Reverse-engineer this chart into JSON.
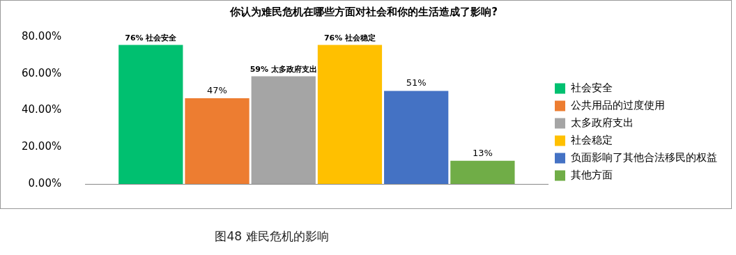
{
  "chart_data": {
    "type": "bar",
    "title": "你认为难民危机在哪些方面对社会和你的生活造成了影响?",
    "categories": [
      null
    ],
    "series": [
      {
        "name": "社会安全",
        "color": "#00c070",
        "values": [
          76
        ],
        "value_labels": [
          "76% 社会安全"
        ]
      },
      {
        "name": "公共用品的过度使用",
        "color": "#ed7d31",
        "values": [
          47
        ],
        "value_labels": [
          "47%"
        ]
      },
      {
        "name": "太多政府支出",
        "color": "#a5a5a5",
        "values": [
          59
        ],
        "value_labels": [
          "59% 太多政府支出"
        ]
      },
      {
        "name": "社会稳定",
        "color": "#ffc000",
        "values": [
          76
        ],
        "value_labels": [
          "76% 社会稳定"
        ]
      },
      {
        "name": "负面影响了其他合法移民的权益",
        "color": "#4472c4",
        "values": [
          51
        ],
        "value_labels": [
          "51%"
        ]
      },
      {
        "name": "其他方面",
        "color": "#70ad47",
        "values": [
          13
        ],
        "value_labels": [
          "13%"
        ]
      }
    ],
    "ylim": [
      0,
      80
    ],
    "yticks": [
      {
        "value": 0,
        "label": "0.00%"
      },
      {
        "value": 20,
        "label": "20.00%"
      },
      {
        "value": 40,
        "label": "40.00%"
      },
      {
        "value": 60,
        "label": "60.00%"
      },
      {
        "value": 80,
        "label": "80.00%"
      }
    ],
    "legend": "right",
    "annotations": [
      "图48 难民危机的影响"
    ]
  }
}
